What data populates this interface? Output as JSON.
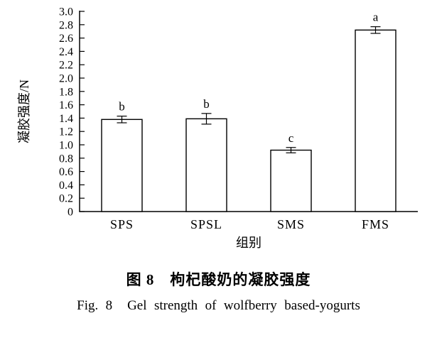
{
  "chart_data": {
    "type": "bar",
    "categories": [
      "SPS",
      "SPSL",
      "SMS",
      "FMS"
    ],
    "values": [
      1.38,
      1.39,
      0.92,
      2.72
    ],
    "errors": [
      0.05,
      0.08,
      0.04,
      0.05
    ],
    "sig_letters": [
      "b",
      "b",
      "c",
      "a"
    ],
    "title": "",
    "xlabel": "组别",
    "ylabel": "凝胶强度/N",
    "ylim": [
      0,
      3.0
    ],
    "ytick_step": 0.2,
    "grid": "off",
    "legend": "none",
    "bar_fill": "#ffffff",
    "bar_border": "#000000",
    "axis_color": "#000000"
  },
  "caption": {
    "zh": "图 8　枸杞酸奶的凝胶强度",
    "en": "Fig. 8  Gel strength of wolfberry based-yogurts"
  }
}
